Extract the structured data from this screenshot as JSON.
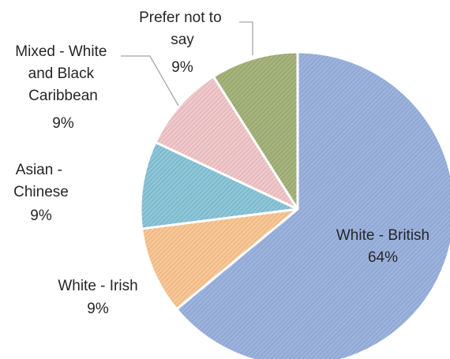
{
  "chart_data": {
    "type": "pie",
    "title": "",
    "slices": [
      {
        "label": "White -  British",
        "value": 64,
        "value_label": "64%",
        "color": "#9db3dc",
        "stroke": "#7f9bcf"
      },
      {
        "label": "White - Irish",
        "value": 9,
        "value_label": "9%",
        "color": "#f6c89a",
        "stroke": "#e9a86a"
      },
      {
        "label": "Asian - Chinese",
        "value": 9,
        "value_label": "9%",
        "color": "#8fc6d8",
        "stroke": "#6aa9c0"
      },
      {
        "label": "Mixed - White and Black Caribbean",
        "value": 9,
        "value_label": "9%",
        "color": "#efc9cb",
        "stroke": "#dba8ab"
      },
      {
        "label": "Prefer not to say",
        "value": 9,
        "value_label": "9%",
        "color": "#a7b47e",
        "stroke": "#8a9a60"
      }
    ],
    "legend": "none",
    "pattern": "diagonal hatch"
  }
}
